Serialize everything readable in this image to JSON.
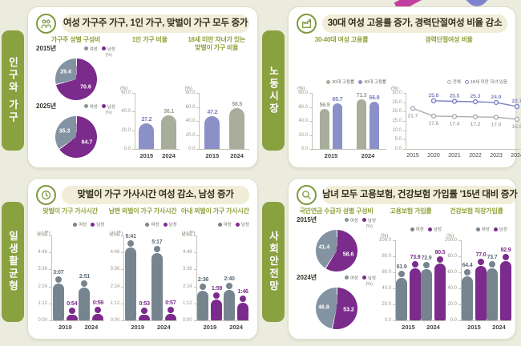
{
  "colors": {
    "purple": "#7b2b8c",
    "slate": "#8393a2",
    "person_gray": "#76848f",
    "blue": "#8c90c8",
    "blue_label": "#767dc1",
    "sage": "#a8ad9c",
    "sage_label": "#989d8c",
    "line_gray": "#a9adb3",
    "line_blue": "#7d83c5",
    "green": "#8aa13f"
  },
  "panels": [
    {
      "tab": "인구와 가구",
      "title": "여성 가구주 가구, 1인 가구, 맞벌이 가구 모두 증가",
      "charts": [
        {
          "kind": "pies",
          "subtitle": "가구주 성별 구성비",
          "legend": [
            {
              "label": "여성",
              "color": "#8393a2"
            },
            {
              "label": "남성",
              "color": "#7b2b8c"
            }
          ],
          "pies": [
            {
              "year": "2015년",
              "unit": "(%)",
              "slices": [
                {
                  "name": "남성",
                  "v": 70.6,
                  "label": "70.6",
                  "color": "#7b2b8c"
                },
                {
                  "name": "여성",
                  "v": 29.4,
                  "label": "29.4",
                  "color": "#8393a2"
                }
              ]
            },
            {
              "year": "2025년",
              "unit": "(%)",
              "slices": [
                {
                  "name": "남성",
                  "v": 64.7,
                  "label": "64.7",
                  "color": "#7b2b8c"
                },
                {
                  "name": "여성",
                  "v": 35.3,
                  "label": "35.3",
                  "color": "#8393a2"
                }
              ]
            }
          ]
        },
        {
          "kind": "bars",
          "subtitle": "1인 가구 비율",
          "unit": "(%)",
          "max": 60,
          "ticks": [
            "60.0",
            "40.0",
            "20.0",
            "0.0"
          ],
          "cats": [
            {
              "x": "2015",
              "v": 27.2,
              "label": "27.2",
              "color": "#8c90c8",
              "labelColor": "#767dc1"
            },
            {
              "x": "2024",
              "v": 36.1,
              "label": "36.1",
              "color": "#a8ad9c",
              "labelColor": "#989d8c"
            }
          ]
        },
        {
          "kind": "bars",
          "subtitle": "18세 미만 자녀가 있는\n맞벌이 가구 비율",
          "unit": "(%)",
          "max": 80,
          "ticks": [
            "80.0",
            "60.0",
            "40.0",
            "20.0",
            "0.0"
          ],
          "cats": [
            {
              "x": "2015",
              "v": 47.2,
              "label": "47.2",
              "color": "#8c90c8",
              "labelColor": "#767dc1"
            },
            {
              "x": "2024",
              "v": 58.5,
              "label": "58.5",
              "color": "#a8ad9c",
              "labelColor": "#989d8c"
            }
          ]
        }
      ]
    },
    {
      "tab": "노동시장",
      "title": "30대 여성 고용률 증가, 경력단절여성 비율 감소",
      "charts": [
        {
          "kind": "gbars",
          "subtitle": "30-40대 여성 고용률",
          "unit": "(%)",
          "max": 80,
          "ticks": [
            "80.0",
            "60.0",
            "40.0",
            "20.0",
            "0.0"
          ],
          "legend": [
            {
              "label": "30대 고용률",
              "color": "#a8ad9c"
            },
            {
              "label": "40대 고용률",
              "color": "#8c90c8"
            }
          ],
          "cats": [
            "2015",
            "2024"
          ],
          "series": [
            {
              "name": "30대 고용률",
              "color": "#a8ad9c",
              "labelColor": "#989d8c",
              "values": [
                56.9,
                71.3
              ],
              "labels": [
                "56.9",
                "71.3"
              ]
            },
            {
              "name": "40대 고용률",
              "color": "#8c90c8",
              "labelColor": "#767dc1",
              "values": [
                65.7,
                66.9
              ],
              "labels": [
                "65.7",
                "66.9"
              ]
            }
          ]
        },
        {
          "kind": "line",
          "subtitle": "경력단절여성 비율",
          "unit": "(%)",
          "max": 30,
          "ticks": [
            "30.0",
            "25.0",
            "20.0",
            "15.0",
            "10.0",
            "5.0",
            "0.0"
          ],
          "legend": [
            {
              "label": "전체",
              "color": "#a9adb3"
            },
            {
              "label": "18세 미만 자녀 있음",
              "color": "#7d83c5"
            }
          ],
          "x": [
            "2015",
            "2020",
            "2021",
            "2022",
            "2023",
            "2024"
          ],
          "series": [
            {
              "name": "전체",
              "color": "#a9adb3",
              "values": [
                21.7,
                17.6,
                17.4,
                17.2,
                17.0,
                15.9
              ],
              "labels": [
                "21.7",
                "17.6",
                "17.4",
                "17.2",
                "17.0",
                "15.9"
              ],
              "side": "below"
            },
            {
              "name": "18세 미만 자녀 있음",
              "color": "#7d83c5",
              "values": [
                null,
                25.8,
                25.5,
                25.3,
                24.9,
                22.7
              ],
              "labels": [
                null,
                "25.8",
                "25.5",
                "25.3",
                "24.9",
                "22.7"
              ],
              "side": "above"
            }
          ]
        }
      ]
    },
    {
      "tab": "일생활균형",
      "title": "맞벌이 가구 가사시간 여성 감소, 남성 증가",
      "charts": [
        {
          "kind": "persons",
          "subtitle": "맞벌이 가구 가사시간",
          "unit": "(시:분)",
          "max": 360,
          "ticks": [
            "6:00",
            "4:48",
            "3:36",
            "2:24",
            "1:12",
            "0:00"
          ],
          "legend": [
            {
              "label": "여성",
              "color": "#76848f"
            },
            {
              "label": "남성",
              "color": "#7b2b8c"
            }
          ],
          "cats": [
            "2019",
            "2024"
          ],
          "series": [
            {
              "name": "여성",
              "color": "#76848f",
              "labelColor": "#5d6b75",
              "values": [
                187,
                171
              ],
              "labels": [
                "3:07",
                "2:51"
              ]
            },
            {
              "name": "남성",
              "color": "#7b2b8c",
              "labelColor": "#7b2b8c",
              "values": [
                54,
                59
              ],
              "labels": [
                "0:54",
                "0:59"
              ]
            }
          ]
        },
        {
          "kind": "persons",
          "subtitle": "남편 외벌이 가구 가사시간",
          "unit": "(시:분)",
          "max": 360,
          "ticks": [
            "6:00",
            "4:48",
            "3:36",
            "2:24",
            "1:12",
            "0:00"
          ],
          "legend": [
            {
              "label": "여성",
              "color": "#76848f"
            },
            {
              "label": "남성",
              "color": "#7b2b8c"
            }
          ],
          "cats": [
            "2019",
            "2024"
          ],
          "series": [
            {
              "name": "여성",
              "color": "#76848f",
              "labelColor": "#5d6b75",
              "values": [
                341,
                317
              ],
              "labels": [
                "5:41",
                "5:17"
              ]
            },
            {
              "name": "남성",
              "color": "#7b2b8c",
              "labelColor": "#7b2b8c",
              "values": [
                53,
                57
              ],
              "labels": [
                "0:53",
                "0:57"
              ]
            }
          ]
        },
        {
          "kind": "persons",
          "subtitle": "아내 외벌이 가구 가사시간",
          "unit": "(시:분)",
          "max": 360,
          "ticks": [
            "6:00",
            "4:48",
            "3:36",
            "2:24",
            "1:12",
            "0:00"
          ],
          "legend": [
            {
              "label": "여성",
              "color": "#76848f"
            },
            {
              "label": "남성",
              "color": "#7b2b8c"
            }
          ],
          "cats": [
            "2019",
            "2024"
          ],
          "series": [
            {
              "name": "여성",
              "color": "#76848f",
              "labelColor": "#5d6b75",
              "values": [
                156,
                160
              ],
              "labels": [
                "2:36",
                "2:40"
              ]
            },
            {
              "name": "남성",
              "color": "#7b2b8c",
              "labelColor": "#7b2b8c",
              "values": [
                119,
                106
              ],
              "labels": [
                "1:59",
                "1:46"
              ]
            }
          ]
        }
      ]
    },
    {
      "tab": "사회안전망",
      "title": "남녀 모두 고용보험, 건강보험 가입률 '15년 대비 증가",
      "charts": [
        {
          "kind": "pies",
          "subtitle": "국민연금 수급자 성별 구성비",
          "legend": [
            {
              "label": "여성",
              "color": "#8393a2"
            },
            {
              "label": "남성",
              "color": "#7b2b8c"
            }
          ],
          "pies": [
            {
              "year": "2015년",
              "unit": "(%)",
              "slices": [
                {
                  "name": "남성",
                  "v": 58.6,
                  "label": "58.6",
                  "color": "#7b2b8c"
                },
                {
                  "name": "여성",
                  "v": 41.4,
                  "label": "41.4",
                  "color": "#8393a2"
                }
              ]
            },
            {
              "year": "2024년",
              "unit": "(%)",
              "slices": [
                {
                  "name": "남성",
                  "v": 53.2,
                  "label": "53.2",
                  "color": "#7b2b8c"
                },
                {
                  "name": "여성",
                  "v": 46.8,
                  "label": "46.8",
                  "color": "#8393a2"
                }
              ]
            }
          ]
        },
        {
          "kind": "persons",
          "subtitle": "고용보험 가입률",
          "unit": "(%)",
          "max": 100,
          "ticks": [
            "100.0",
            "80.0",
            "60.0",
            "40.0",
            "20.0",
            "0.0"
          ],
          "legend": [
            {
              "label": "여성",
              "color": "#76848f"
            },
            {
              "label": "남성",
              "color": "#7b2b8c"
            }
          ],
          "cats": [
            "2015",
            "2024"
          ],
          "series": [
            {
              "name": "여성",
              "color": "#76848f",
              "labelColor": "#5d6b75",
              "values": [
                61.9,
                72.9
              ],
              "labels": [
                "61.9",
                "72.9"
              ]
            },
            {
              "name": "남성",
              "color": "#7b2b8c",
              "labelColor": "#7b2b8c",
              "values": [
                73.9,
                80.5
              ],
              "labels": [
                "73.9",
                "80.5"
              ]
            }
          ]
        },
        {
          "kind": "persons",
          "subtitle": "건강보험 직장가입률",
          "unit": "(%)",
          "max": 100,
          "ticks": [
            "100.0",
            "80.0",
            "60.0",
            "40.0",
            "20.0",
            "0.0"
          ],
          "legend": [
            {
              "label": "여성",
              "color": "#76848f"
            },
            {
              "label": "남성",
              "color": "#7b2b8c"
            }
          ],
          "cats": [
            "2015",
            "2024"
          ],
          "series": [
            {
              "name": "여성",
              "color": "#76848f",
              "labelColor": "#5d6b75",
              "values": [
                64.4,
                73.7
              ],
              "labels": [
                "64.4",
                "73.7"
              ]
            },
            {
              "name": "남성",
              "color": "#7b2b8c",
              "labelColor": "#7b2b8c",
              "values": [
                77.0,
                82.9
              ],
              "labels": [
                "77.0",
                "82.9"
              ]
            }
          ]
        }
      ]
    }
  ],
  "chart_data": [
    {
      "type": "pie",
      "title": "가구주 성별 구성비 2015년",
      "labels": [
        "남성",
        "여성"
      ],
      "values": [
        70.6,
        29.4
      ]
    },
    {
      "type": "pie",
      "title": "가구주 성별 구성비 2025년",
      "labels": [
        "남성",
        "여성"
      ],
      "values": [
        64.7,
        35.3
      ]
    },
    {
      "type": "bar",
      "title": "1인 가구 비율",
      "categories": [
        "2015",
        "2024"
      ],
      "values": [
        27.2,
        36.1
      ],
      "ylabel": "(%)",
      "ylim": [
        0,
        60
      ]
    },
    {
      "type": "bar",
      "title": "18세 미만 자녀가 있는 맞벌이 가구 비율",
      "categories": [
        "2015",
        "2024"
      ],
      "values": [
        47.2,
        58.5
      ],
      "ylabel": "(%)",
      "ylim": [
        0,
        80
      ]
    },
    {
      "type": "bar",
      "title": "30-40대 여성 고용률",
      "categories": [
        "2015",
        "2024"
      ],
      "series": [
        {
          "name": "30대 고용률",
          "values": [
            56.9,
            71.3
          ]
        },
        {
          "name": "40대 고용률",
          "values": [
            65.7,
            66.9
          ]
        }
      ],
      "ylabel": "(%)",
      "ylim": [
        0,
        80
      ]
    },
    {
      "type": "line",
      "title": "경력단절여성 비율",
      "x": [
        "2015",
        "2020",
        "2021",
        "2022",
        "2023",
        "2024"
      ],
      "series": [
        {
          "name": "전체",
          "values": [
            21.7,
            17.6,
            17.4,
            17.2,
            17.0,
            15.9
          ]
        },
        {
          "name": "18세 미만 자녀 있음",
          "values": [
            null,
            25.8,
            25.5,
            25.3,
            24.9,
            22.7
          ]
        }
      ],
      "ylabel": "(%)",
      "ylim": [
        0,
        30
      ]
    },
    {
      "type": "bar",
      "title": "맞벌이 가구 가사시간",
      "categories": [
        "2019",
        "2024"
      ],
      "series": [
        {
          "name": "여성",
          "values": [
            "3:07",
            "2:51"
          ]
        },
        {
          "name": "남성",
          "values": [
            "0:54",
            "0:59"
          ]
        }
      ],
      "ylabel": "(시:분)"
    },
    {
      "type": "bar",
      "title": "남편 외벌이 가구 가사시간",
      "categories": [
        "2019",
        "2024"
      ],
      "series": [
        {
          "name": "여성",
          "values": [
            "5:41",
            "5:17"
          ]
        },
        {
          "name": "남성",
          "values": [
            "0:53",
            "0:57"
          ]
        }
      ],
      "ylabel": "(시:분)"
    },
    {
      "type": "bar",
      "title": "아내 외벌이 가구 가사시간",
      "categories": [
        "2019",
        "2024"
      ],
      "series": [
        {
          "name": "여성",
          "values": [
            "2:36",
            "2:40"
          ]
        },
        {
          "name": "남성",
          "values": [
            "1:59",
            "1:46"
          ]
        }
      ],
      "ylabel": "(시:분)"
    },
    {
      "type": "pie",
      "title": "국민연금 수급자 성별 구성비 2015년",
      "labels": [
        "남성",
        "여성"
      ],
      "values": [
        58.6,
        41.4
      ]
    },
    {
      "type": "pie",
      "title": "국민연금 수급자 성별 구성비 2024년",
      "labels": [
        "남성",
        "여성"
      ],
      "values": [
        53.2,
        46.8
      ]
    },
    {
      "type": "bar",
      "title": "고용보험 가입률",
      "categories": [
        "2015",
        "2024"
      ],
      "series": [
        {
          "name": "여성",
          "values": [
            61.9,
            72.9
          ]
        },
        {
          "name": "남성",
          "values": [
            73.9,
            80.5
          ]
        }
      ],
      "ylabel": "(%)",
      "ylim": [
        0,
        100
      ]
    },
    {
      "type": "bar",
      "title": "건강보험 직장가입률",
      "categories": [
        "2015",
        "2024"
      ],
      "series": [
        {
          "name": "여성",
          "values": [
            64.4,
            73.7
          ]
        },
        {
          "name": "남성",
          "values": [
            77.0,
            82.9
          ]
        }
      ],
      "ylabel": "(%)",
      "ylim": [
        0,
        100
      ]
    }
  ]
}
